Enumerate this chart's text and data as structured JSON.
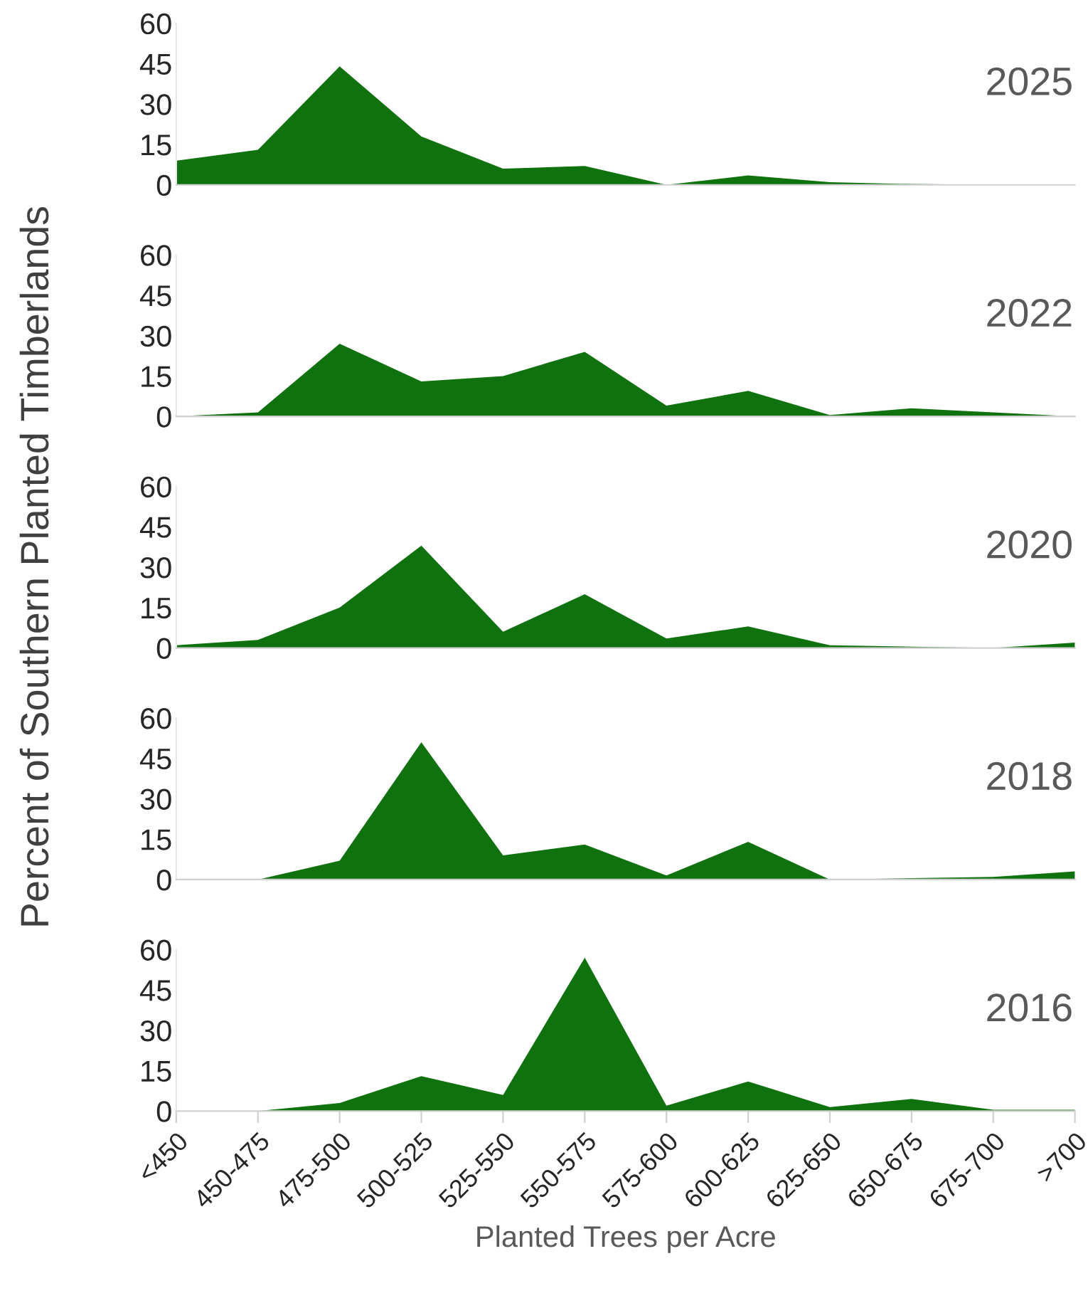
{
  "chart_data": [
    {
      "type": "area",
      "title": "2025",
      "ylabel": "Percent of Southern Planted Timberlands",
      "categories": [
        null,
        null,
        null,
        null,
        null,
        null,
        null,
        null,
        null,
        null,
        null,
        null
      ],
      "values": [
        9,
        13,
        44,
        18,
        6,
        7,
        0,
        3.5,
        1,
        0.3,
        0,
        0
      ],
      "color": "#0f720f",
      "ylim": [
        0,
        60
      ],
      "yticks": [
        0,
        15,
        30,
        45,
        60
      ],
      "tick_labels": "y",
      "grid": false,
      "legend": false
    },
    {
      "type": "area",
      "title": "2022",
      "categories": [
        null,
        null,
        null,
        null,
        null,
        null,
        null,
        null,
        null,
        null,
        null,
        null
      ],
      "values": [
        0,
        1.5,
        27,
        13,
        15,
        24,
        4,
        9.5,
        0.5,
        3,
        1.5,
        0
      ],
      "color": "#0f720f",
      "ylim": [
        0,
        60
      ],
      "yticks": [
        0,
        15,
        30,
        45,
        60
      ],
      "tick_labels": "y",
      "grid": false,
      "legend": false
    },
    {
      "type": "area",
      "title": "2020",
      "categories": [
        null,
        null,
        null,
        null,
        null,
        null,
        null,
        null,
        null,
        null,
        null,
        null
      ],
      "values": [
        1,
        3,
        15,
        38,
        6,
        20,
        3.5,
        8,
        1,
        0.5,
        0,
        2
      ],
      "color": "#0f720f",
      "ylim": [
        0,
        60
      ],
      "yticks": [
        0,
        15,
        30,
        45,
        60
      ],
      "tick_labels": "y",
      "grid": false,
      "legend": false
    },
    {
      "type": "area",
      "title": "2018",
      "categories": [
        null,
        null,
        null,
        null,
        null,
        null,
        null,
        null,
        null,
        null,
        null,
        null
      ],
      "values": [
        0,
        0,
        7,
        51,
        9,
        13,
        1.5,
        14,
        0,
        0.5,
        1,
        3
      ],
      "color": "#0f720f",
      "ylim": [
        0,
        60
      ],
      "yticks": [
        0,
        15,
        30,
        45,
        60
      ],
      "tick_labels": "y",
      "grid": false,
      "legend": false
    },
    {
      "type": "area",
      "title": "2016",
      "xlabel": "Planted Trees per Acre",
      "categories": [
        "<450",
        "450-475",
        "475-500",
        "500-525",
        "525-550",
        "550-575",
        "575-600",
        "600-625",
        "625-650",
        "650-675",
        "675-700",
        ">700"
      ],
      "values": [
        0,
        0,
        3,
        13,
        6,
        57,
        2,
        11,
        1.5,
        4.5,
        0.5,
        0.5
      ],
      "color": "#0f720f",
      "ylim": [
        0,
        60
      ],
      "yticks": [
        0,
        15,
        30,
        45,
        60
      ],
      "grid": false,
      "legend": false
    }
  ]
}
